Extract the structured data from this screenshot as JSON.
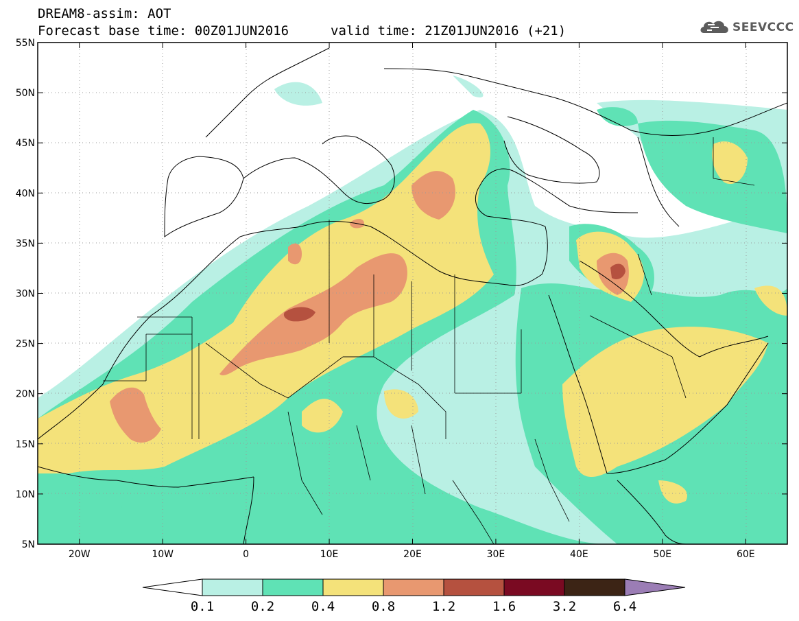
{
  "title": {
    "line1": "DREAM8-assim: AOT",
    "base_time": "Forecast base time: 00Z01JUN2016",
    "valid_time": "valid time: 21Z01JUN2016 (+21)"
  },
  "logo": {
    "text": "SEEVCCC",
    "icon": "cloud-icon"
  },
  "axes": {
    "lat_labels": [
      "55N",
      "50N",
      "45N",
      "40N",
      "35N",
      "30N",
      "25N",
      "20N",
      "15N",
      "10N",
      "5N"
    ],
    "lon_labels": [
      "20W",
      "10W",
      "0",
      "10E",
      "20E",
      "30E",
      "40E",
      "50E",
      "60E"
    ],
    "lat_range": [
      5,
      55
    ],
    "lon_range": [
      -25,
      65
    ]
  },
  "colorbar": {
    "colors": [
      "#b9f0e4",
      "#5fe2b5",
      "#f4e27a",
      "#e89870",
      "#b5513f",
      "#7a0a22",
      "#3c2415",
      "#9b7db5"
    ],
    "labels": [
      "0.1",
      "0.2",
      "0.4",
      "0.8",
      "1.2",
      "1.6",
      "3.2",
      "6.4"
    ]
  },
  "map": {
    "variable": "AOT",
    "colors": {
      "background": "#ffffff",
      "coastline": "#000000",
      "grid": "#9a9a9a"
    }
  }
}
